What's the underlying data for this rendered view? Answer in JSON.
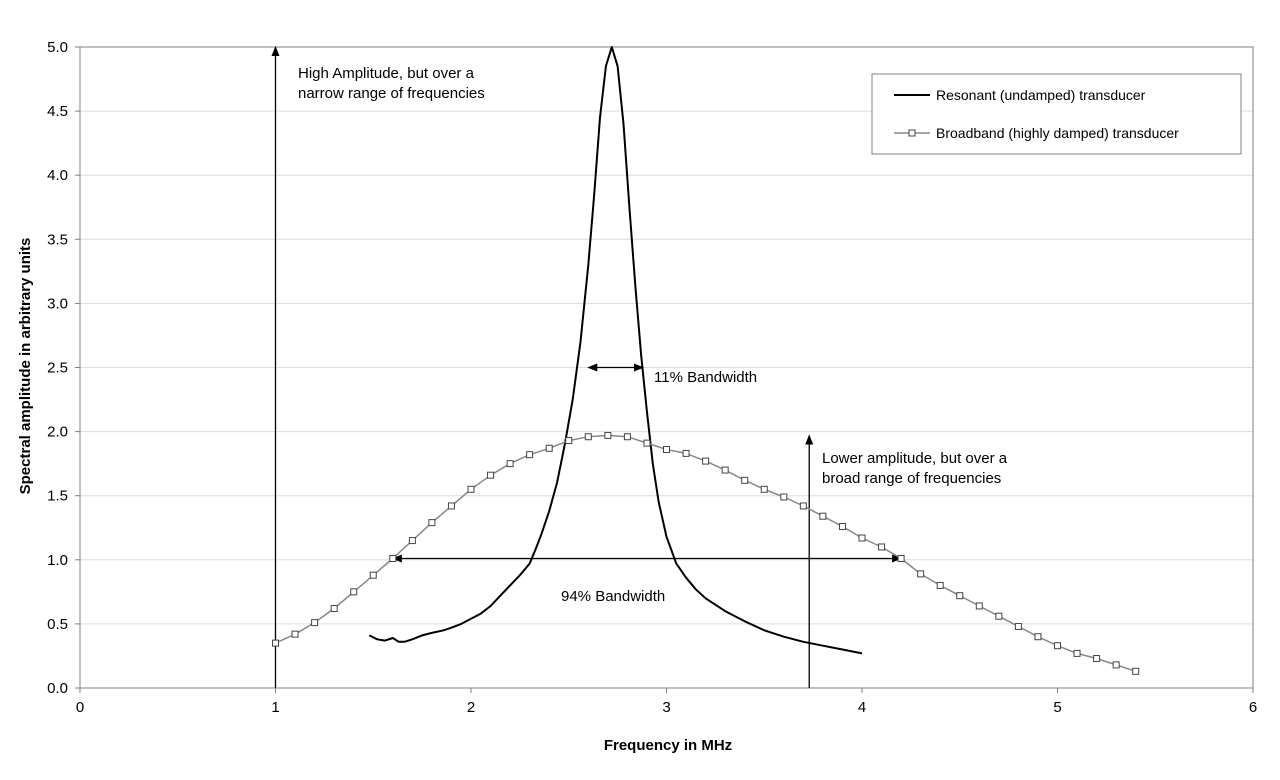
{
  "colors": {
    "resonant": "#000000",
    "broadband_line": "#888888",
    "broadband_marker_fill": "#ffffff",
    "broadband_marker_stroke": "#444444",
    "grid": "#dddddd",
    "axis": "#808080"
  },
  "chart_data": {
    "type": "line",
    "title": "",
    "xlabel": "Frequency in MHz",
    "ylabel": "Spectral amplitude in arbitrary units",
    "xlim": [
      0,
      6
    ],
    "ylim": [
      0,
      5
    ],
    "x_ticks": [
      "0",
      "1",
      "2",
      "3",
      "4",
      "5",
      "6"
    ],
    "y_ticks": [
      "0.0",
      "0.5",
      "1.0",
      "1.5",
      "2.0",
      "2.5",
      "3.0",
      "3.5",
      "4.0",
      "4.5",
      "5.0"
    ],
    "grid": "horizontal",
    "legend_position": "top-right",
    "series": [
      {
        "name": "Resonant (undamped) transducer",
        "markers": false,
        "x": [
          1.48,
          1.52,
          1.56,
          1.6,
          1.63,
          1.66,
          1.7,
          1.75,
          1.8,
          1.86,
          1.9,
          1.95,
          2.0,
          2.05,
          2.1,
          2.15,
          2.2,
          2.25,
          2.3,
          2.33,
          2.36,
          2.4,
          2.44,
          2.48,
          2.52,
          2.56,
          2.6,
          2.63,
          2.66,
          2.69,
          2.72,
          2.75,
          2.78,
          2.81,
          2.84,
          2.87,
          2.9,
          2.93,
          2.96,
          3.0,
          3.05,
          3.1,
          3.15,
          3.2,
          3.3,
          3.4,
          3.5,
          3.6,
          3.7,
          3.8,
          3.9,
          4.0
        ],
        "values": [
          0.41,
          0.38,
          0.37,
          0.39,
          0.36,
          0.36,
          0.38,
          0.41,
          0.43,
          0.45,
          0.47,
          0.5,
          0.54,
          0.58,
          0.64,
          0.72,
          0.8,
          0.88,
          0.97,
          1.08,
          1.2,
          1.38,
          1.6,
          1.9,
          2.25,
          2.7,
          3.3,
          3.85,
          4.45,
          4.85,
          5.0,
          4.85,
          4.4,
          3.75,
          3.15,
          2.6,
          2.15,
          1.75,
          1.45,
          1.18,
          0.97,
          0.86,
          0.77,
          0.7,
          0.6,
          0.52,
          0.45,
          0.4,
          0.36,
          0.33,
          0.3,
          0.27
        ]
      },
      {
        "name": "Broadband (highly damped) transducer",
        "markers": true,
        "x": [
          1.0,
          1.1,
          1.2,
          1.3,
          1.4,
          1.5,
          1.6,
          1.7,
          1.8,
          1.9,
          2.0,
          2.1,
          2.2,
          2.3,
          2.4,
          2.5,
          2.6,
          2.7,
          2.8,
          2.9,
          3.0,
          3.1,
          3.2,
          3.3,
          3.4,
          3.5,
          3.6,
          3.7,
          3.8,
          3.9,
          4.0,
          4.1,
          4.2,
          4.3,
          4.4,
          4.5,
          4.6,
          4.7,
          4.8,
          4.9,
          5.0,
          5.1,
          5.2,
          5.3,
          5.4
        ],
        "values": [
          0.35,
          0.42,
          0.51,
          0.62,
          0.75,
          0.88,
          1.01,
          1.15,
          1.29,
          1.42,
          1.55,
          1.66,
          1.75,
          1.82,
          1.87,
          1.93,
          1.96,
          1.97,
          1.96,
          1.91,
          1.86,
          1.83,
          1.77,
          1.7,
          1.62,
          1.55,
          1.49,
          1.42,
          1.34,
          1.26,
          1.17,
          1.1,
          1.01,
          0.89,
          0.8,
          0.72,
          0.64,
          0.56,
          0.48,
          0.4,
          0.33,
          0.27,
          0.23,
          0.18,
          0.13
        ]
      }
    ],
    "annotations": [
      {
        "lines": [
          "High Amplitude, but over a",
          "narrow range of frequencies"
        ]
      },
      {
        "lines": [
          "11% Bandwidth"
        ]
      },
      {
        "lines": [
          "Lower amplitude, but over a",
          "broad range of frequencies"
        ]
      },
      {
        "lines": [
          "94% Bandwidth"
        ]
      }
    ],
    "reference_arrows": [
      {
        "kind": "vertical",
        "x": 1.0,
        "y_from": 0.0,
        "y_to": 5.0
      },
      {
        "kind": "vertical",
        "x": 3.73,
        "y_from": 0.0,
        "y_to": 1.97
      },
      {
        "kind": "horizontal-double",
        "y": 2.5,
        "x_from": 2.6,
        "x_to": 2.88
      },
      {
        "kind": "horizontal-double",
        "y": 1.01,
        "x_from": 1.6,
        "x_to": 4.2
      }
    ]
  }
}
